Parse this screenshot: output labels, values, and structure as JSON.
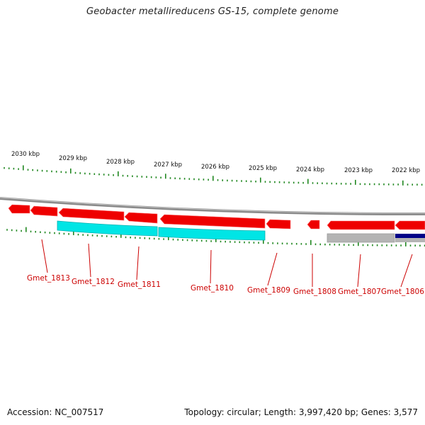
{
  "title": "Geobacter metallireducens GS-15, complete genome",
  "footer": {
    "accession": "Accession: NC_007517",
    "summary": "Topology: circular; Length: 3,997,420 bp; Genes: 3,577"
  },
  "colors": {
    "gene_fill": "#ee0000",
    "gene_light": "#ff6666",
    "cds_cyan": "#00e5e5",
    "cds_gray": "#b4b4b4",
    "cds_navy": "#000088",
    "backbone": "#888888",
    "tick": "#228822",
    "label_red": "#cc0000"
  },
  "kbp_labels": [
    "2030 kbp",
    "2029 kbp",
    "2028 kbp",
    "2027 kbp",
    "2026 kbp",
    "2025 kbp",
    "2024 kbp",
    "2023 kbp",
    "2022 kbp"
  ],
  "genes": [
    {
      "name": "Gmet_1813"
    },
    {
      "name": "Gmet_1812"
    },
    {
      "name": "Gmet_1811"
    },
    {
      "name": "Gmet_1810"
    },
    {
      "name": "Gmet_1809"
    },
    {
      "name": "Gmet_1808"
    },
    {
      "name": "Gmet_1807"
    },
    {
      "name": "Gmet_1806"
    }
  ]
}
